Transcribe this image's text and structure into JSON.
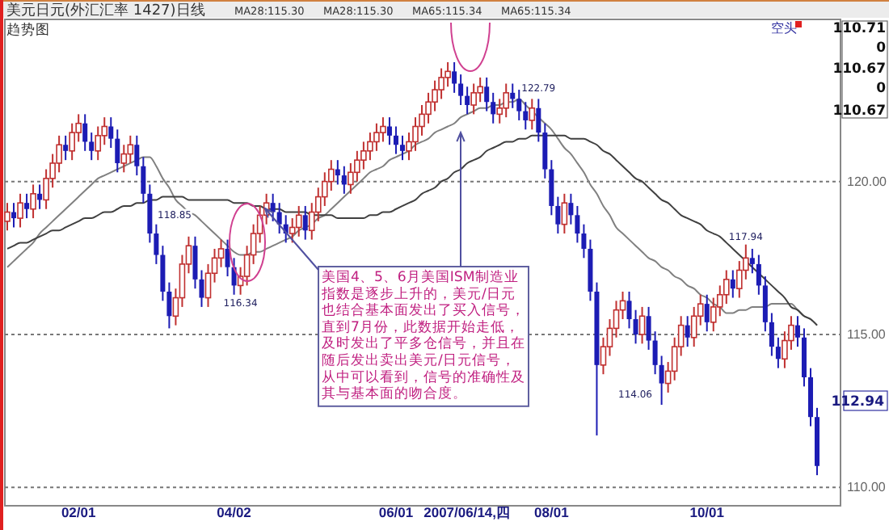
{
  "chart_data": {
    "type": "candlestick",
    "title": "美元日元(外汇汇率 1427)日线",
    "subtitle": "趋势图",
    "categories": [
      null,
      null,
      null,
      null,
      null,
      null,
      null,
      null,
      null,
      null,
      null,
      "02/01",
      null,
      null,
      null,
      null,
      null,
      null,
      null,
      null,
      null,
      null,
      null,
      null,
      null,
      null,
      null,
      null,
      null,
      null,
      null,
      null,
      null,
      null,
      null,
      "04/02",
      null,
      null,
      null,
      null,
      null,
      null,
      null,
      null,
      null,
      null,
      null,
      null,
      null,
      null,
      null,
      null,
      null,
      null,
      null,
      null,
      null,
      null,
      null,
      null,
      "06/01",
      null,
      null,
      null,
      null,
      null,
      null,
      null,
      null,
      null,
      null,
      "2007/06/14,四",
      null,
      null,
      null,
      null,
      null,
      null,
      null,
      null,
      null,
      null,
      null,
      null,
      "08/01",
      null,
      null,
      null,
      null,
      null,
      null,
      null,
      null,
      null,
      null,
      null,
      null,
      null,
      null,
      null,
      null,
      null,
      null,
      null,
      null,
      null,
      null,
      null,
      "10/01",
      null,
      null,
      null,
      null,
      null,
      null,
      null,
      null,
      null,
      null,
      null,
      null,
      null,
      null,
      null,
      null,
      null
    ],
    "ylim": [
      109.4,
      125.3
    ],
    "yticks": [
      {
        "value": 110,
        "label": "110.00"
      },
      {
        "value": 115,
        "label": "115.00"
      },
      {
        "value": 120,
        "label": "120.00"
      }
    ],
    "grid": "y",
    "series": [
      {
        "ohlc": [
          [
            118.7,
            119.3,
            118.4,
            119.0
          ],
          [
            119.0,
            119.3,
            118.5,
            118.8
          ],
          [
            118.8,
            119.6,
            118.5,
            119.3
          ],
          [
            119.3,
            119.6,
            118.8,
            119.1
          ],
          [
            119.1,
            119.9,
            118.8,
            119.6
          ],
          [
            119.6,
            119.9,
            119.1,
            119.4
          ],
          [
            119.4,
            120.4,
            119.1,
            120.1
          ],
          [
            120.1,
            120.9,
            119.8,
            120.6
          ],
          [
            120.6,
            121.5,
            120.3,
            121.2
          ],
          [
            121.2,
            121.5,
            120.7,
            121.0
          ],
          [
            121.0,
            121.9,
            120.7,
            121.6
          ],
          [
            121.6,
            122.2,
            121.3,
            121.9
          ],
          [
            121.9,
            122.2,
            121.0,
            121.3
          ],
          [
            121.3,
            121.6,
            120.7,
            121.0
          ],
          [
            121.0,
            121.8,
            120.7,
            121.5
          ],
          [
            121.5,
            122.1,
            121.2,
            121.8
          ],
          [
            121.8,
            122.1,
            121.1,
            121.4
          ],
          [
            121.4,
            121.7,
            120.3,
            120.6
          ],
          [
            120.6,
            121.2,
            120.3,
            120.9
          ],
          [
            120.9,
            121.5,
            120.6,
            121.2
          ],
          [
            121.2,
            121.5,
            120.2,
            120.5
          ],
          [
            120.5,
            120.8,
            119.3,
            119.6
          ],
          [
            119.6,
            119.9,
            118.0,
            118.3
          ],
          [
            118.3,
            118.6,
            117.3,
            117.6
          ],
          [
            117.6,
            117.9,
            116.1,
            116.4
          ],
          [
            116.4,
            116.7,
            115.2,
            115.6
          ],
          [
            115.6,
            116.5,
            115.3,
            116.2
          ],
          [
            116.2,
            117.6,
            115.9,
            117.3
          ],
          [
            117.3,
            118.2,
            117.0,
            117.9
          ],
          [
            117.9,
            118.2,
            116.5,
            116.8
          ],
          [
            116.8,
            117.1,
            115.9,
            116.2
          ],
          [
            116.2,
            117.3,
            115.9,
            117.0
          ],
          [
            117.0,
            117.8,
            116.7,
            117.5
          ],
          [
            117.5,
            118.1,
            117.2,
            117.8
          ],
          [
            117.8,
            118.1,
            116.9,
            117.2
          ],
          [
            117.2,
            117.5,
            116.3,
            116.6
          ],
          [
            116.6,
            117.2,
            116.3,
            116.9
          ],
          [
            116.9,
            117.9,
            116.6,
            117.6
          ],
          [
            117.6,
            118.6,
            117.3,
            118.3
          ],
          [
            118.3,
            119.2,
            118.0,
            118.9
          ],
          [
            118.9,
            119.6,
            118.6,
            119.3
          ],
          [
            119.3,
            119.6,
            118.7,
            119.0
          ],
          [
            119.0,
            119.3,
            118.3,
            118.6
          ],
          [
            118.6,
            118.9,
            118.0,
            118.3
          ],
          [
            118.3,
            118.8,
            118.0,
            118.5
          ],
          [
            118.5,
            119.2,
            118.2,
            118.9
          ],
          [
            118.9,
            119.2,
            118.1,
            118.4
          ],
          [
            118.4,
            119.3,
            118.1,
            119.0
          ],
          [
            119.0,
            119.8,
            118.7,
            119.5
          ],
          [
            119.5,
            120.3,
            119.2,
            120.0
          ],
          [
            120.0,
            120.7,
            119.7,
            120.4
          ],
          [
            120.4,
            120.7,
            119.9,
            120.2
          ],
          [
            120.2,
            120.5,
            119.6,
            119.9
          ],
          [
            119.9,
            120.6,
            119.6,
            120.3
          ],
          [
            120.3,
            121.0,
            120.0,
            120.7
          ],
          [
            120.7,
            121.3,
            120.4,
            121.0
          ],
          [
            121.0,
            121.6,
            120.7,
            121.3
          ],
          [
            121.3,
            121.9,
            121.0,
            121.6
          ],
          [
            121.6,
            122.1,
            121.3,
            121.8
          ],
          [
            121.8,
            122.1,
            121.2,
            121.5
          ],
          [
            121.5,
            121.8,
            120.9,
            121.2
          ],
          [
            121.2,
            121.5,
            120.7,
            121.0
          ],
          [
            121.0,
            121.6,
            120.7,
            121.3
          ],
          [
            121.3,
            122.1,
            121.0,
            121.8
          ],
          [
            121.8,
            122.5,
            121.5,
            122.2
          ],
          [
            122.2,
            122.9,
            121.9,
            122.6
          ],
          [
            122.6,
            123.3,
            122.3,
            123.0
          ],
          [
            123.0,
            123.7,
            122.7,
            123.4
          ],
          [
            123.4,
            123.9,
            123.1,
            123.6
          ],
          [
            123.6,
            123.9,
            122.9,
            123.2
          ],
          [
            123.2,
            123.5,
            122.5,
            122.8
          ],
          [
            122.8,
            123.1,
            122.2,
            122.5
          ],
          [
            122.5,
            123.2,
            122.2,
            122.9
          ],
          [
            122.9,
            123.4,
            122.6,
            123.1
          ],
          [
            123.1,
            123.4,
            122.3,
            122.6
          ],
          [
            122.6,
            122.9,
            121.9,
            122.2
          ],
          [
            122.2,
            122.7,
            121.9,
            122.4
          ],
          [
            122.4,
            123.2,
            122.1,
            122.9
          ],
          [
            122.9,
            123.2,
            122.4,
            122.7
          ],
          [
            122.7,
            123.0,
            122.0,
            122.3
          ],
          [
            122.3,
            122.6,
            121.7,
            122.0
          ],
          [
            122.0,
            122.7,
            121.7,
            122.4
          ],
          [
            122.4,
            122.7,
            121.3,
            121.6
          ],
          [
            121.6,
            121.9,
            120.1,
            120.4
          ],
          [
            120.4,
            120.7,
            118.9,
            119.2
          ],
          [
            119.2,
            119.5,
            118.3,
            118.6
          ],
          [
            118.6,
            119.6,
            118.3,
            119.3
          ],
          [
            119.3,
            119.6,
            118.6,
            118.9
          ],
          [
            118.9,
            119.2,
            118.0,
            118.3
          ],
          [
            118.3,
            118.6,
            117.5,
            117.8
          ],
          [
            117.8,
            118.1,
            116.1,
            116.4
          ],
          [
            116.4,
            116.7,
            111.7,
            114.0
          ],
          [
            114.0,
            114.9,
            113.7,
            114.6
          ],
          [
            114.6,
            115.5,
            114.3,
            115.2
          ],
          [
            115.2,
            116.1,
            114.9,
            115.8
          ],
          [
            115.8,
            116.4,
            115.5,
            116.1
          ],
          [
            116.1,
            116.4,
            115.2,
            115.5
          ],
          [
            115.5,
            115.8,
            114.7,
            115.0
          ],
          [
            115.0,
            115.9,
            114.7,
            115.6
          ],
          [
            115.6,
            115.9,
            114.5,
            114.8
          ],
          [
            114.8,
            115.1,
            113.7,
            114.0
          ],
          [
            114.0,
            114.3,
            112.7,
            113.4
          ],
          [
            113.4,
            114.1,
            113.1,
            113.8
          ],
          [
            113.8,
            114.9,
            113.5,
            114.6
          ],
          [
            114.6,
            115.6,
            114.3,
            115.3
          ],
          [
            115.3,
            115.6,
            114.6,
            114.9
          ],
          [
            114.9,
            115.9,
            114.6,
            115.6
          ],
          [
            115.6,
            116.3,
            115.3,
            116.0
          ],
          [
            116.0,
            116.3,
            115.1,
            115.4
          ],
          [
            115.4,
            116.2,
            115.1,
            115.9
          ],
          [
            115.9,
            116.6,
            115.6,
            116.3
          ],
          [
            116.3,
            117.1,
            116.0,
            116.8
          ],
          [
            116.8,
            117.1,
            116.2,
            116.5
          ],
          [
            116.5,
            117.4,
            116.2,
            117.1
          ],
          [
            117.1,
            117.94,
            116.8,
            117.5
          ],
          [
            117.5,
            117.8,
            117.0,
            117.3
          ],
          [
            117.3,
            117.6,
            116.3,
            116.6
          ],
          [
            116.6,
            116.9,
            115.1,
            115.4
          ],
          [
            115.4,
            115.7,
            114.3,
            114.6
          ],
          [
            114.6,
            114.9,
            113.9,
            114.2
          ],
          [
            114.2,
            115.1,
            113.9,
            114.8
          ],
          [
            114.8,
            115.6,
            114.5,
            115.3
          ],
          [
            115.3,
            115.6,
            114.6,
            114.9
          ],
          [
            114.9,
            115.2,
            113.3,
            113.6
          ],
          [
            113.6,
            113.9,
            112.0,
            112.3
          ],
          [
            112.3,
            112.6,
            110.4,
            110.7
          ]
        ],
        "colors": [
          "#c03030",
          "#1c1cb4",
          "#c03030",
          "#1c1cb4",
          "#c03030",
          "#1c1cb4",
          "#c03030",
          "#c03030",
          "#c03030",
          "#1c1cb4",
          "#c03030",
          "#c03030",
          "#1c1cb4",
          "#1c1cb4",
          "#c03030",
          "#c03030",
          "#1c1cb4",
          "#1c1cb4",
          "#c03030",
          "#c03030",
          "#1c1cb4",
          "#1c1cb4",
          "#1c1cb4",
          "#1c1cb4",
          "#1c1cb4",
          "#1c1cb4",
          "#c03030",
          "#c03030",
          "#c03030",
          "#1c1cb4",
          "#1c1cb4",
          "#c03030",
          "#c03030",
          "#c03030",
          "#1c1cb4",
          "#1c1cb4",
          "#c03030",
          "#c03030",
          "#c03030",
          "#c03030",
          "#c03030",
          "#1c1cb4",
          "#1c1cb4",
          "#1c1cb4",
          "#c03030",
          "#c03030",
          "#1c1cb4",
          "#c03030",
          "#c03030",
          "#c03030",
          "#c03030",
          "#1c1cb4",
          "#1c1cb4",
          "#c03030",
          "#c03030",
          "#c03030",
          "#c03030",
          "#c03030",
          "#c03030",
          "#1c1cb4",
          "#1c1cb4",
          "#1c1cb4",
          "#c03030",
          "#c03030",
          "#c03030",
          "#c03030",
          "#c03030",
          "#c03030",
          "#c03030",
          "#1c1cb4",
          "#1c1cb4",
          "#1c1cb4",
          "#c03030",
          "#c03030",
          "#1c1cb4",
          "#1c1cb4",
          "#c03030",
          "#c03030",
          "#1c1cb4",
          "#1c1cb4",
          "#1c1cb4",
          "#c03030",
          "#1c1cb4",
          "#1c1cb4",
          "#1c1cb4",
          "#1c1cb4",
          "#c03030",
          "#1c1cb4",
          "#1c1cb4",
          "#1c1cb4",
          "#1c1cb4",
          "#1c1cb4",
          "#c03030",
          "#c03030",
          "#c03030",
          "#c03030",
          "#1c1cb4",
          "#1c1cb4",
          "#c03030",
          "#1c1cb4",
          "#1c1cb4",
          "#1c1cb4",
          "#c03030",
          "#c03030",
          "#c03030",
          "#1c1cb4",
          "#c03030",
          "#c03030",
          "#1c1cb4",
          "#c03030",
          "#c03030",
          "#c03030",
          "#1c1cb4",
          "#c03030",
          "#c03030",
          "#1c1cb4",
          "#1c1cb4",
          "#1c1cb4",
          "#1c1cb4",
          "#1c1cb4",
          "#c03030",
          "#c03030",
          "#1c1cb4",
          "#1c1cb4",
          "#1c1cb4",
          "#1c1cb4"
        ]
      },
      {
        "type": "line",
        "color": "#808080",
        "values": [
          117.2,
          117.4,
          117.6,
          117.8,
          118.0,
          118.3,
          118.5,
          118.7,
          118.9,
          119.1,
          119.3,
          119.5,
          119.7,
          119.9,
          120.1,
          120.2,
          120.3,
          120.4,
          120.5,
          120.6,
          120.7,
          120.8,
          120.8,
          120.5,
          120.1,
          119.8,
          119.4,
          119.2,
          119.0,
          118.9,
          118.7,
          118.5,
          118.3,
          118.1,
          117.9,
          117.7,
          117.6,
          117.6,
          117.7,
          117.7,
          117.8,
          117.9,
          118.0,
          118.1,
          118.2,
          118.4,
          118.5,
          118.6,
          118.8,
          118.9,
          119.1,
          119.3,
          119.5,
          119.7,
          119.9,
          120.1,
          120.3,
          120.4,
          120.5,
          120.7,
          120.8,
          120.9,
          121.0,
          121.2,
          121.3,
          121.4,
          121.6,
          121.7,
          121.8,
          121.9,
          122.1,
          122.2,
          122.3,
          122.4,
          122.4,
          122.5,
          122.5,
          122.6,
          122.6,
          122.7,
          122.5,
          122.3,
          122.1,
          121.9,
          121.7,
          121.4,
          121.1,
          120.9,
          120.6,
          120.3,
          119.9,
          119.6,
          119.2,
          118.9,
          118.5,
          118.3,
          118.1,
          117.9,
          117.7,
          117.5,
          117.4,
          117.2,
          117.1,
          116.9,
          116.8,
          116.6,
          116.5,
          116.3,
          116.2,
          116.0,
          115.9,
          115.7,
          115.7,
          115.8,
          115.8,
          115.9,
          115.9,
          115.9,
          116.0,
          116.0,
          116.0,
          116.0,
          115.8,
          115.6,
          115.5,
          115.3
        ]
      },
      {
        "type": "line",
        "color": "#404040",
        "values": [
          117.8,
          117.9,
          118.0,
          118.0,
          118.1,
          118.2,
          118.3,
          118.4,
          118.4,
          118.5,
          118.6,
          118.7,
          118.8,
          118.8,
          118.9,
          119.0,
          119.0,
          119.1,
          119.2,
          119.2,
          119.3,
          119.3,
          119.4,
          119.4,
          119.5,
          119.5,
          119.5,
          119.5,
          119.4,
          119.4,
          119.4,
          119.4,
          119.4,
          119.4,
          119.4,
          119.3,
          119.3,
          119.3,
          119.2,
          119.2,
          119.1,
          119.1,
          119.1,
          119.0,
          119.0,
          119.0,
          119.0,
          118.9,
          118.9,
          118.9,
          118.9,
          118.8,
          118.8,
          118.8,
          118.8,
          118.8,
          118.9,
          118.9,
          119.0,
          119.0,
          119.1,
          119.2,
          119.3,
          119.4,
          119.6,
          119.7,
          119.8,
          120.0,
          120.1,
          120.3,
          120.4,
          120.6,
          120.7,
          120.8,
          121.0,
          121.1,
          121.2,
          121.3,
          121.3,
          121.4,
          121.4,
          121.5,
          121.5,
          121.5,
          121.5,
          121.5,
          121.5,
          121.4,
          121.4,
          121.4,
          121.3,
          121.2,
          121.0,
          120.9,
          120.7,
          120.5,
          120.3,
          120.1,
          120.0,
          119.8,
          119.6,
          119.4,
          119.3,
          119.1,
          118.9,
          118.8,
          118.7,
          118.6,
          118.4,
          118.3,
          118.2,
          118.0,
          117.8,
          117.6,
          117.4,
          117.2,
          117.0,
          116.8,
          116.6,
          116.4,
          116.2,
          115.9,
          115.8,
          115.6,
          115.5,
          115.3
        ]
      }
    ],
    "annotations": [
      "MA28:115.30",
      "MA28:115.30",
      "MA65:115.34",
      "MA65:115.34",
      "空头",
      "110.71",
      "0",
      "110.67",
      "0",
      "110.67",
      "112.94",
      "118.85",
      {
        "text": "116.34",
        "y": 116.34
      },
      {
        "text": "122.79",
        "y": 122.79
      },
      {
        "text": "117.94",
        "y": 117.94
      },
      "114.06",
      "美国4、5、6月美国ISM制造业指数是逐步上升的，美元/日元也结合基本面发出了买入信号，直到7月份，此数据开始走低，及时发出了平多仓信号，并且在随后发出卖出美元/日元信号，从中可以看到，信号的准确性及其与基本面的吻合度。"
    ]
  }
}
